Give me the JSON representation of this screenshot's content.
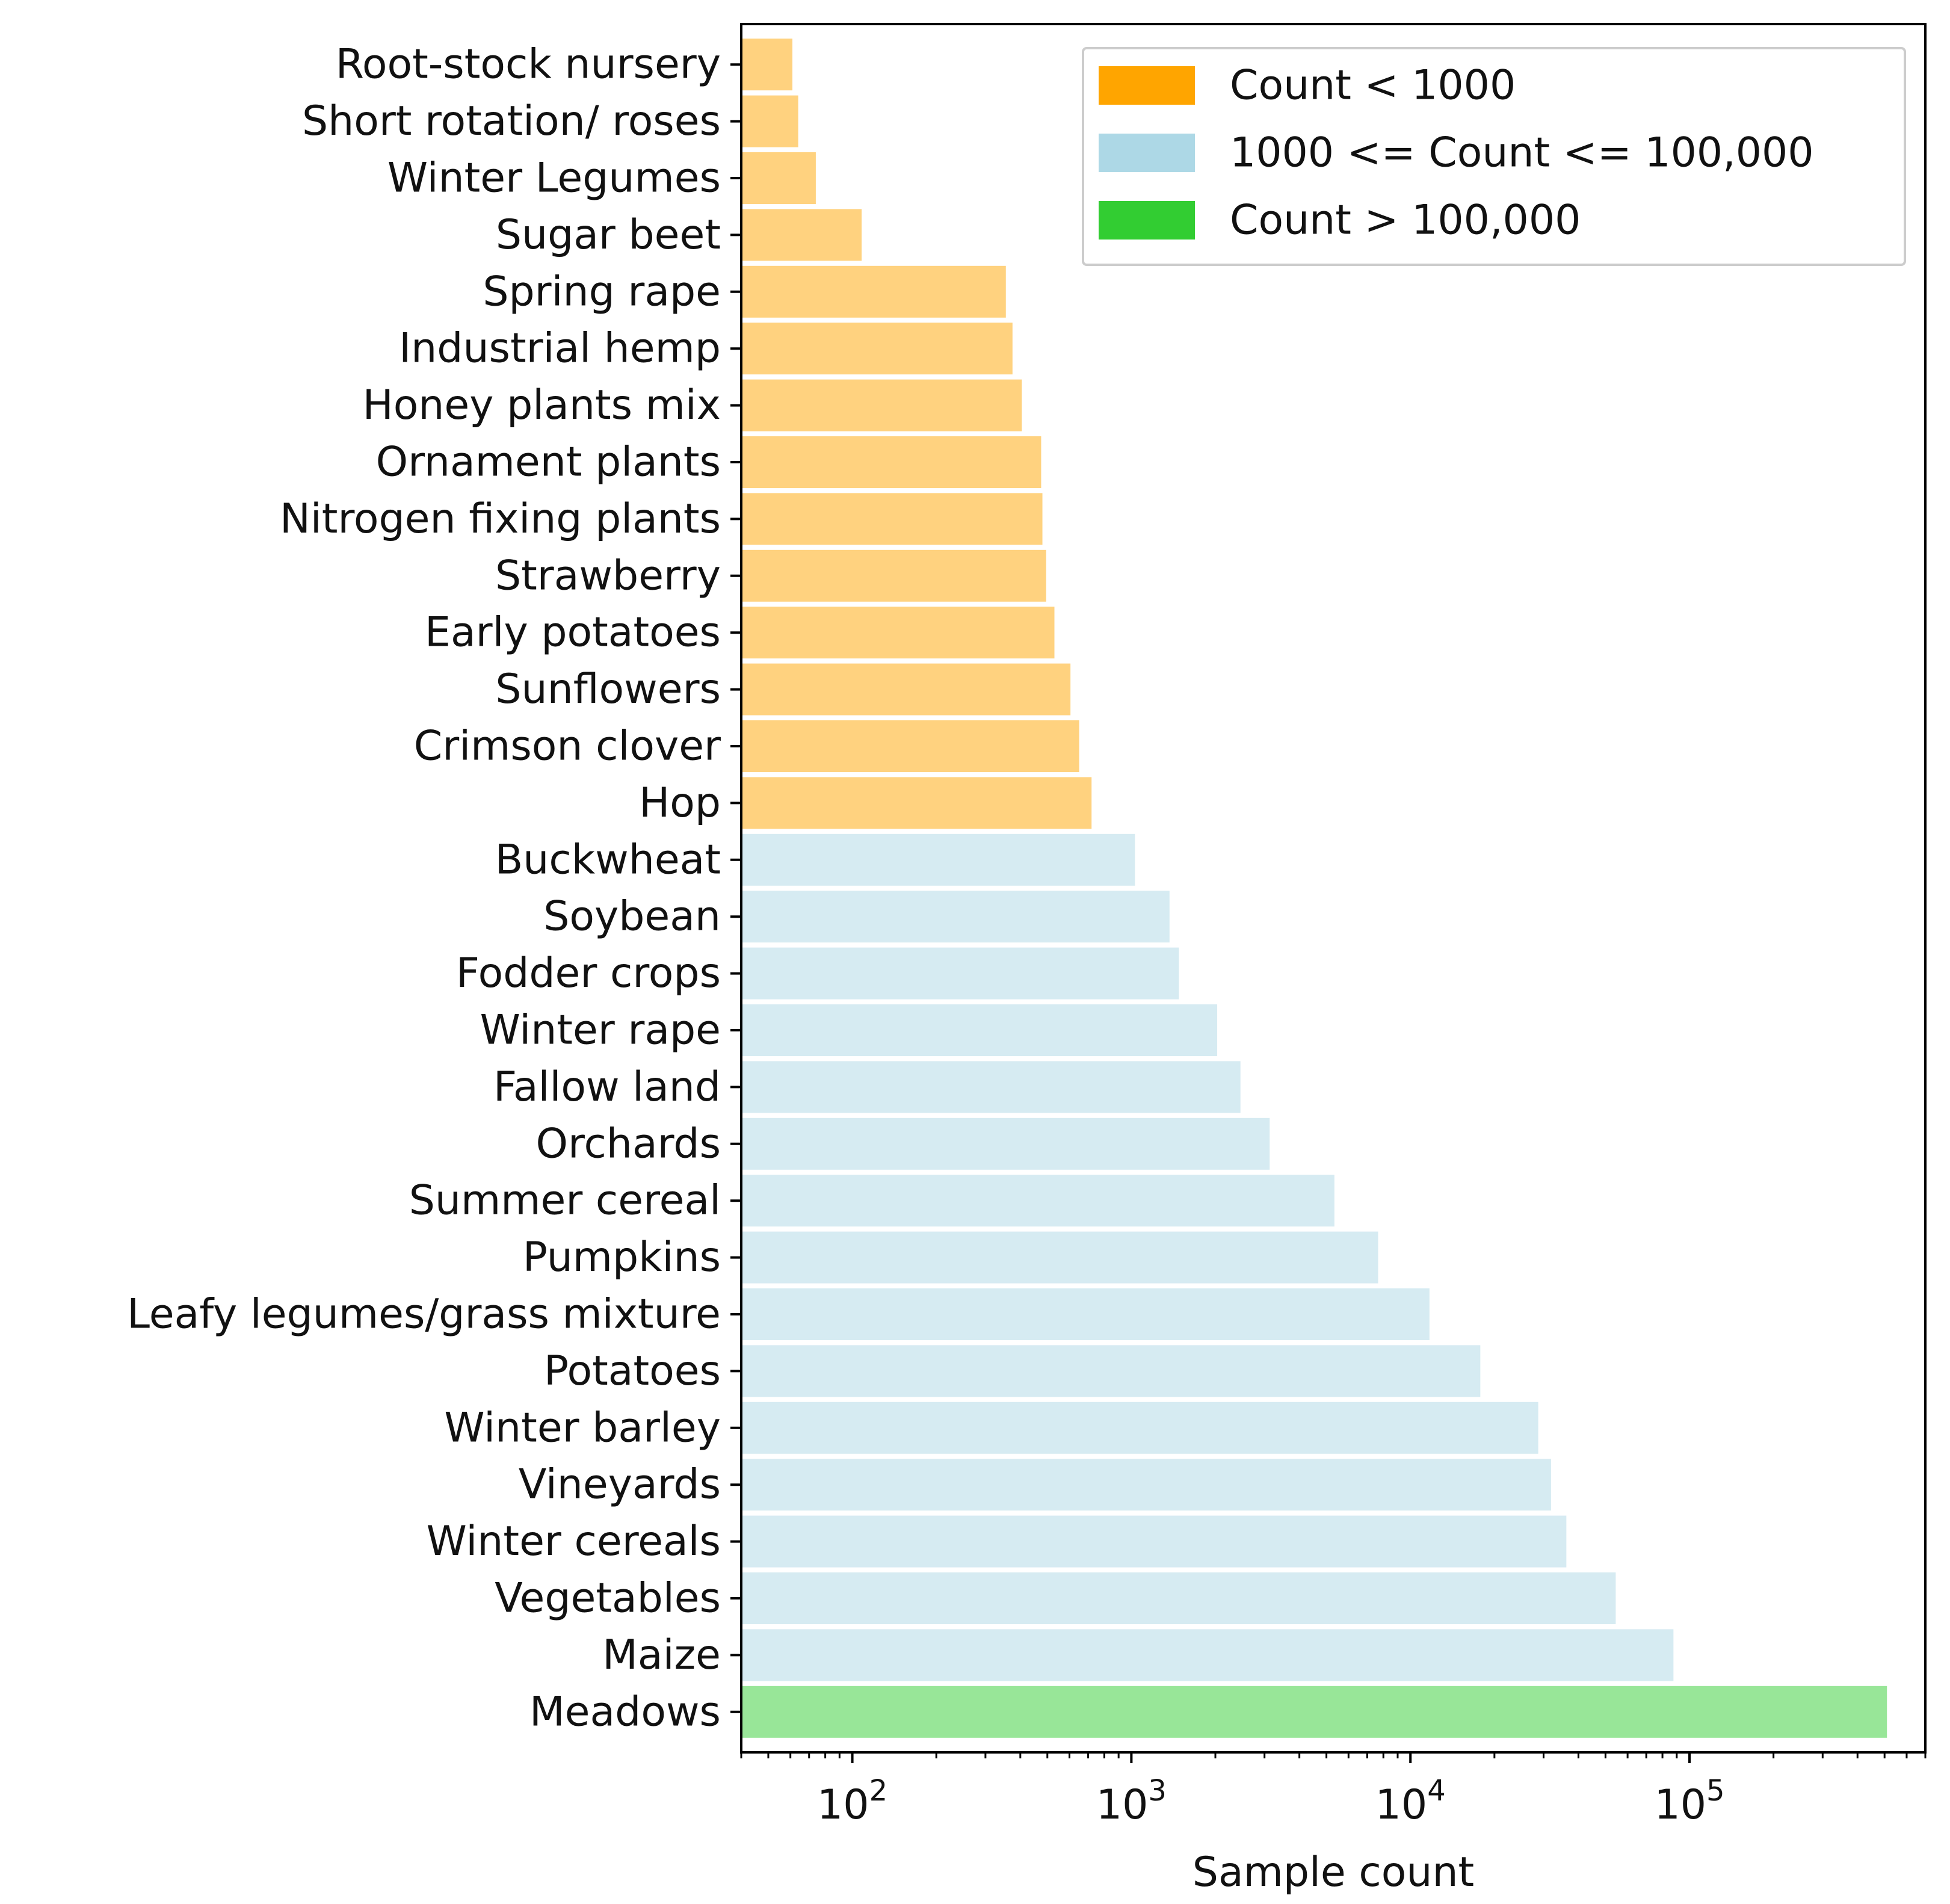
{
  "chart_data": {
    "type": "bar",
    "orientation": "horizontal",
    "title": "",
    "xlabel": "Sample count",
    "ylabel": "",
    "xscale": "log",
    "xlim": [
      40,
      700000
    ],
    "x_ticks": [
      {
        "value": 100,
        "base": "10",
        "exp": "2"
      },
      {
        "value": 1000,
        "base": "10",
        "exp": "3"
      },
      {
        "value": 10000,
        "base": "10",
        "exp": "4"
      },
      {
        "value": 100000,
        "base": "10",
        "exp": "5"
      }
    ],
    "categories": [
      "Root-stock nursery",
      "Short rotation/ roses",
      "Winter Legumes",
      "Sugar beet",
      "Spring rape",
      "Industrial hemp",
      "Honey plants mix",
      "Ornament plants",
      "Nitrogen fixing plants",
      "Strawberry",
      "Early potatoes",
      "Sunflowers",
      "Crimson clover",
      "Hop",
      "Buckwheat",
      "Soybean",
      "Fodder crops",
      "Winter rape",
      "Fallow land",
      "Orchards",
      "Summer cereal",
      "Pumpkins",
      "Leafy legumes/grass mixture",
      "Potatoes",
      "Winter barley",
      "Vineyards",
      "Winter cereals",
      "Vegetables",
      "Maize",
      "Meadows"
    ],
    "values": [
      61,
      64,
      74,
      108,
      355,
      375,
      405,
      475,
      480,
      495,
      530,
      605,
      650,
      720,
      1030,
      1370,
      1480,
      2030,
      2460,
      3130,
      5340,
      7660,
      11700,
      17800,
      28700,
      31900,
      36200,
      54400,
      87600,
      510000
    ],
    "legend": {
      "placement": "top-right",
      "entries": [
        {
          "label": "Count < 1000",
          "color": "#ffa500"
        },
        {
          "label": "1000 <= Count <= 100,000",
          "color": "#add8e6"
        },
        {
          "label": "Count > 100,000",
          "color": "#32cd32"
        }
      ]
    },
    "bar_alpha": 0.5,
    "grid": false
  }
}
